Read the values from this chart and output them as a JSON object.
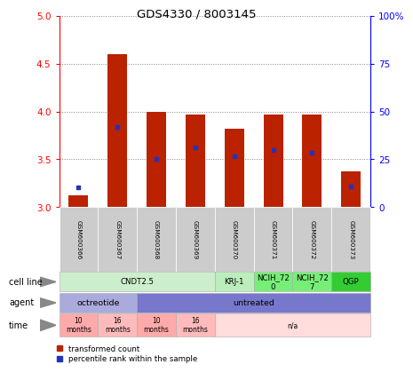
{
  "title": "GDS4330 / 8003145",
  "samples": [
    "GSM600366",
    "GSM600367",
    "GSM600368",
    "GSM600369",
    "GSM600370",
    "GSM600371",
    "GSM600372",
    "GSM600373"
  ],
  "bar_heights": [
    3.12,
    4.6,
    4.0,
    3.97,
    3.82,
    3.97,
    3.97,
    3.37
  ],
  "blue_dots": [
    3.21,
    3.84,
    3.5,
    3.62,
    3.53,
    3.6,
    3.57,
    3.22
  ],
  "ylim": [
    3.0,
    5.0
  ],
  "yticks_left": [
    3.0,
    3.5,
    4.0,
    4.5,
    5.0
  ],
  "yticks_right": [
    0,
    25,
    50,
    75,
    100
  ],
  "bar_color": "#bb2200",
  "dot_color": "#2233bb",
  "bar_width": 0.5,
  "cell_line_info": [
    {
      "label": "CNDT2.5",
      "start": 0,
      "end": 3,
      "color": "#cceecc"
    },
    {
      "label": "KRJ-1",
      "start": 4,
      "end": 4,
      "color": "#bbeebb"
    },
    {
      "label": "NCIH_72\n0",
      "start": 5,
      "end": 5,
      "color": "#77ee77"
    },
    {
      "label": "NCIH_72\n7",
      "start": 6,
      "end": 6,
      "color": "#77ee77"
    },
    {
      "label": "QGP",
      "start": 7,
      "end": 7,
      "color": "#33cc33"
    }
  ],
  "agent_info": [
    {
      "label": "octreotide",
      "start": 0,
      "end": 1,
      "color": "#aaaadd"
    },
    {
      "label": "untreated",
      "start": 2,
      "end": 7,
      "color": "#7777cc"
    }
  ],
  "time_info": [
    {
      "label": "10\nmonths",
      "start": 0,
      "end": 0,
      "color": "#ffaaaa"
    },
    {
      "label": "16\nmonths",
      "start": 1,
      "end": 1,
      "color": "#ffbbbb"
    },
    {
      "label": "10\nmonths",
      "start": 2,
      "end": 2,
      "color": "#ffaaaa"
    },
    {
      "label": "16\nmonths",
      "start": 3,
      "end": 3,
      "color": "#ffbbbb"
    },
    {
      "label": "n/a",
      "start": 4,
      "end": 7,
      "color": "#ffdddd"
    }
  ],
  "legend_labels": [
    "transformed count",
    "percentile rank within the sample"
  ],
  "legend_colors": [
    "#bb2200",
    "#2233bb"
  ]
}
